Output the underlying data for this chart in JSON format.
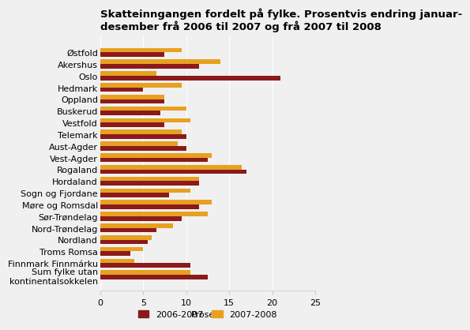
{
  "title": "Skatteinngangen fordelt på fylke. Prosentvis endring januar-\ndesember frå 2006 til 2007 og frå 2007 til 2008",
  "categories": [
    "Østfold",
    "Akershus",
    "Oslo",
    "Hedmark",
    "Oppland",
    "Buskerud",
    "Vestfold",
    "Telemark",
    "Aust-Agder",
    "Vest-Agder",
    "Rogaland",
    "Hordaland",
    "Sogn og Fjordane",
    "Møre og Romsdal",
    "Sør-Trøndelag",
    "Nord-Trøndelag",
    "Nordland",
    "Troms Romsa",
    "Finnmark Finnmárku",
    "Sum fylke utan\nkontinentalsokkelen"
  ],
  "values_2006_2007": [
    7.5,
    11.5,
    21.0,
    5.0,
    7.5,
    7.0,
    7.5,
    10.0,
    10.0,
    12.5,
    17.0,
    11.5,
    8.0,
    11.5,
    9.5,
    6.5,
    5.5,
    3.5,
    10.5,
    12.5
  ],
  "values_2007_2008": [
    9.5,
    14.0,
    6.5,
    9.5,
    7.5,
    10.0,
    10.5,
    9.5,
    9.0,
    13.0,
    16.5,
    11.5,
    10.5,
    13.0,
    12.5,
    8.5,
    6.0,
    5.0,
    4.0,
    10.5
  ],
  "color_2006_2007": "#8B1A1A",
  "color_2007_2008": "#E8A020",
  "xlabel": "Prosent",
  "xlim": [
    0,
    25
  ],
  "xticks": [
    0,
    5,
    10,
    15,
    20,
    25
  ],
  "background_color": "#f0f0f0",
  "legend_labels": [
    "2006-2007",
    "2007-2008"
  ],
  "title_fontsize": 9.5,
  "axis_fontsize": 8.0
}
